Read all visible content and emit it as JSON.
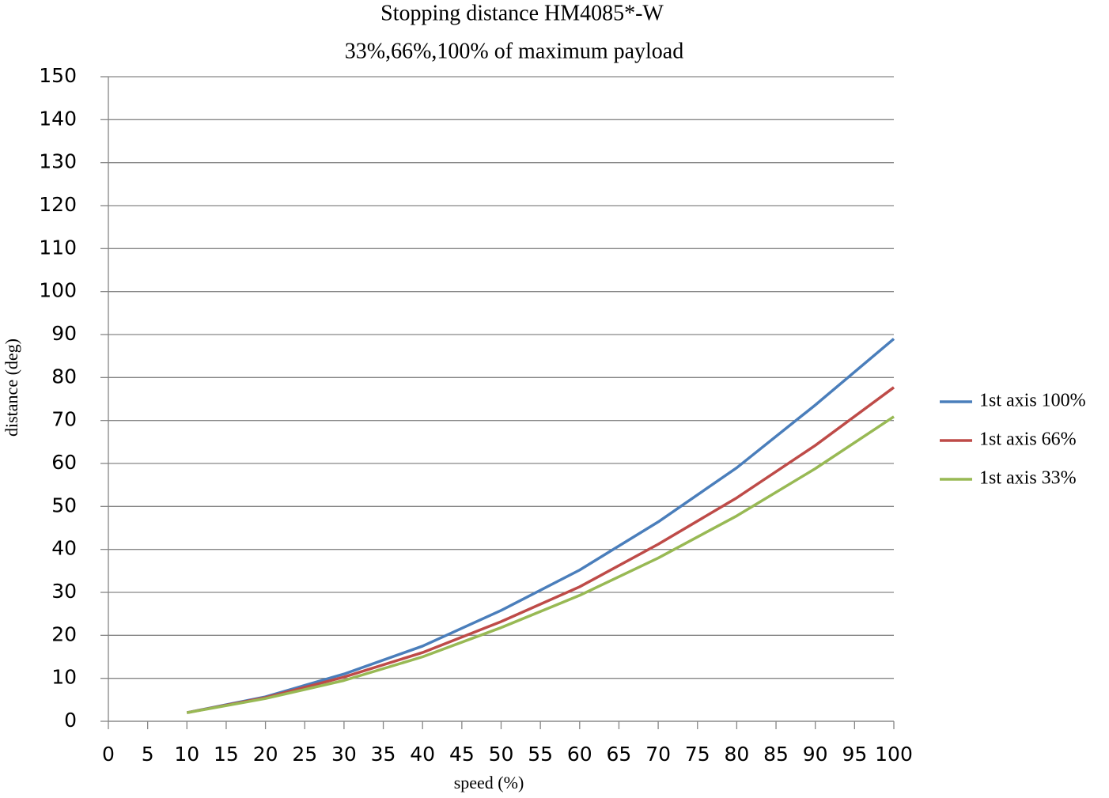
{
  "chart_data": {
    "type": "line",
    "title": "Stopping distance HM4085*-W",
    "subtitle": "33%,66%,100% of maximum payload",
    "x_label": "speed (%)",
    "y_label": "distance (deg)",
    "x": [
      10,
      20,
      30,
      40,
      50,
      60,
      70,
      80,
      90,
      100
    ],
    "series": [
      {
        "name": "1st axis 100%",
        "color": "#4a7ebb",
        "values": [
          2,
          5.7,
          11,
          17.5,
          25.8,
          35.2,
          46.4,
          59,
          73.6,
          89
        ]
      },
      {
        "name": "1st axis 66%",
        "color": "#be4b48",
        "values": [
          2,
          5.5,
          10.3,
          16,
          23.2,
          31.3,
          41.2,
          52,
          64.2,
          77.7
        ]
      },
      {
        "name": "1st axis 33%",
        "color": "#98b954",
        "values": [
          2,
          5.3,
          9.5,
          15,
          21.8,
          29.3,
          38,
          47.8,
          58.8,
          70.9
        ]
      }
    ],
    "xlim": [
      0,
      100
    ],
    "xticks": [
      0,
      5,
      10,
      15,
      20,
      25,
      30,
      35,
      40,
      45,
      50,
      55,
      60,
      65,
      70,
      75,
      80,
      85,
      90,
      95,
      100
    ],
    "ylim": [
      0,
      150
    ],
    "yticks": [
      0,
      10,
      20,
      30,
      40,
      50,
      60,
      70,
      80,
      90,
      100,
      110,
      120,
      130,
      140,
      150
    ],
    "grid": true,
    "legend": "right"
  }
}
